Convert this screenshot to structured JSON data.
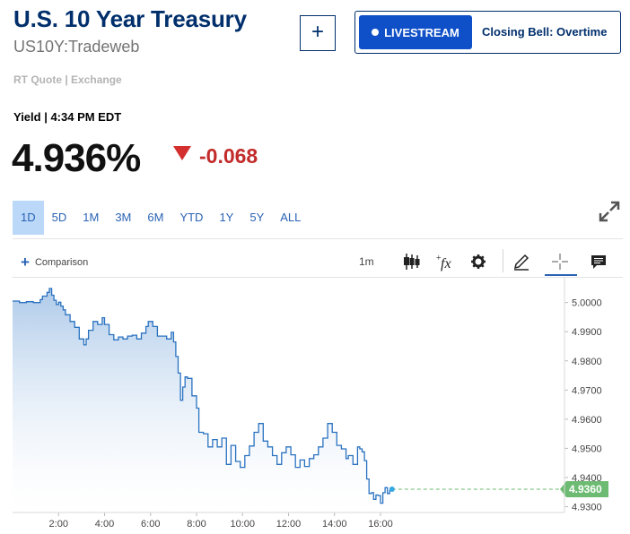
{
  "header": {
    "title": "U.S. 10 Year Treasury",
    "symbol": "US10Y:Tradeweb",
    "add_button": "+",
    "livestream_label": "LIVESTREAM",
    "livestream_show": "Closing Bell: Overtime"
  },
  "quote": {
    "source": "RT Quote | Exchange",
    "label": "Yield | 4:34 PM EDT",
    "price": "4.936%",
    "change": "-0.068",
    "change_color": "#c22b2b"
  },
  "ranges": [
    "1D",
    "5D",
    "1M",
    "3M",
    "6M",
    "YTD",
    "1Y",
    "5Y",
    "ALL"
  ],
  "active_range": "1D",
  "toolbar": {
    "comparison": "Comparison",
    "interval": "1m",
    "icons": [
      "candlestick-icon",
      "function-icon",
      "gear-icon",
      "pencil-icon",
      "crosshair-icon",
      "comment-icon"
    ]
  },
  "colors": {
    "brand": "#002f6c",
    "accent": "#2a63b4",
    "line": "#2a72c0",
    "last_price": "#6dbb72"
  },
  "chart_data": {
    "type": "area",
    "x_tick_labels": [
      "2:00",
      "4:00",
      "6:00",
      "8:00",
      "10:00",
      "12:00",
      "14:00",
      "16:00"
    ],
    "y_tick_labels": [
      "5.0000",
      "4.9900",
      "4.9800",
      "4.9700",
      "4.9600",
      "4.9500",
      "4.9400",
      "4.9300"
    ],
    "ylim": [
      4.928,
      5.0085
    ],
    "xlim_hours": [
      0,
      24
    ],
    "last_value_label": "4.9360",
    "x_hours": [
      0.0,
      0.3,
      0.6,
      0.9,
      1.2,
      1.3,
      1.5,
      1.6,
      1.7,
      1.8,
      1.9,
      2.0,
      2.1,
      2.2,
      2.3,
      2.5,
      2.7,
      2.9,
      3.1,
      3.2,
      3.3,
      3.5,
      3.7,
      3.9,
      4.0,
      4.2,
      4.4,
      4.6,
      4.8,
      5.0,
      5.2,
      5.4,
      5.6,
      5.8,
      5.9,
      6.1,
      6.3,
      6.5,
      6.7,
      6.9,
      7.0,
      7.1,
      7.2,
      7.3,
      7.4,
      7.5,
      7.6,
      7.8,
      8.0,
      8.1,
      8.3,
      8.5,
      8.7,
      8.9,
      9.1,
      9.3,
      9.5,
      9.7,
      9.9,
      10.1,
      10.3,
      10.5,
      10.7,
      10.9,
      11.1,
      11.3,
      11.5,
      11.7,
      11.9,
      12.1,
      12.3,
      12.5,
      12.7,
      12.9,
      13.1,
      13.3,
      13.5,
      13.7,
      13.9,
      14.1,
      14.3,
      14.5,
      14.6,
      14.8,
      15.0,
      15.1,
      15.2,
      15.3,
      15.4,
      15.5,
      15.6,
      15.7,
      15.8,
      15.9,
      16.0,
      16.1,
      16.2,
      16.3,
      16.4,
      16.5
    ],
    "values": [
      5.0005,
      5.0,
      5.0003,
      5.0,
      5.001,
      5.0022,
      5.0035,
      5.0048,
      5.0025,
      5.0008,
      4.9993,
      5.0001,
      4.9988,
      4.9975,
      4.9958,
      4.9935,
      4.9915,
      4.9875,
      4.9855,
      4.9875,
      4.9905,
      4.9935,
      4.9925,
      4.9948,
      4.9925,
      4.989,
      4.9872,
      4.9882,
      4.9875,
      4.9885,
      4.9888,
      4.9875,
      4.9895,
      4.9918,
      4.9935,
      4.9918,
      4.9885,
      4.9885,
      4.9875,
      4.9898,
      4.9865,
      4.9815,
      4.9758,
      4.9665,
      4.971,
      4.9745,
      4.974,
      4.968,
      4.9638,
      4.9555,
      4.955,
      4.9505,
      4.953,
      4.9505,
      4.9535,
      4.9445,
      4.951,
      4.9455,
      4.9435,
      4.9475,
      4.9508,
      4.9555,
      4.9585,
      4.9525,
      4.9505,
      4.9475,
      4.9445,
      4.9485,
      4.9505,
      4.9478,
      4.9435,
      4.946,
      4.9438,
      4.9465,
      4.9478,
      4.9505,
      4.9535,
      4.9585,
      4.9555,
      4.951,
      4.9498,
      4.9465,
      4.9475,
      4.9445,
      4.9505,
      4.9498,
      4.9488,
      4.9458,
      4.9395,
      4.9345,
      4.9348,
      4.9325,
      4.934,
      4.9338,
      4.9312,
      4.9348,
      4.9365,
      4.9345,
      4.9355,
      4.936
    ]
  }
}
